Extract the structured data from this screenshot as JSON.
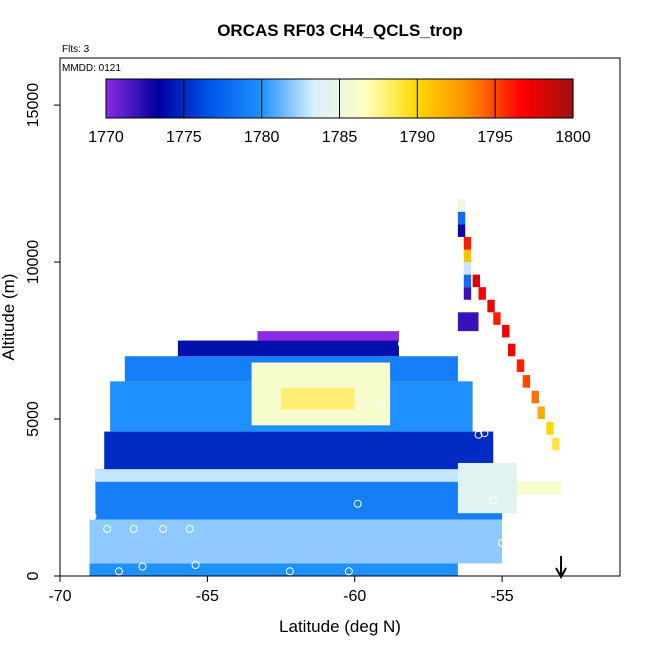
{
  "chart_data": {
    "type": "heatmap",
    "title": "ORCAS RF03 CH4_QCLS_trop",
    "flights_note": "Flts: 3",
    "date_note": "MMDD: 0121",
    "xlabel": "Latitude (deg N)",
    "ylabel": "Altitude (m)",
    "xlim": [
      -70,
      -51
    ],
    "ylim": [
      0,
      16500
    ],
    "xticks": [
      -70,
      -65,
      -60,
      -55
    ],
    "xtick_labels": [
      "-70",
      "-65",
      "-60",
      "-55"
    ],
    "yticks": [
      0,
      5000,
      10000,
      15000
    ],
    "ytick_labels": [
      "0",
      "5000",
      "10000",
      "15000"
    ],
    "colorbar": {
      "min": 1770,
      "max": 1800,
      "ticks": [
        1770,
        1775,
        1780,
        1785,
        1790,
        1795,
        1800
      ],
      "tick_labels": [
        "1770",
        "1775",
        "1780",
        "1785",
        "1790",
        "1795",
        "1800"
      ],
      "stops": [
        "#8B2BE2",
        "#0000A0",
        "#0055E8",
        "#1E90FF",
        "#D8F0FF",
        "#FFFFC0",
        "#FFD700",
        "#FF8C00",
        "#FF0000",
        "#A01010"
      ]
    },
    "cell_size": {
      "lat": 0.25,
      "alt": 200
    },
    "regions": [
      {
        "lat": [
          -69.0,
          -56.5
        ],
        "alt": [
          0,
          400
        ],
        "value": 1780
      },
      {
        "lat": [
          -69.0,
          -55.0
        ],
        "alt": [
          400,
          1800
        ],
        "value": 1782
      },
      {
        "lat": [
          -68.8,
          -55.0
        ],
        "alt": [
          1800,
          3400
        ],
        "value": 1779
      },
      {
        "lat": [
          -68.5,
          -55.3
        ],
        "alt": [
          3400,
          4600
        ],
        "value": 1775
      },
      {
        "lat": [
          -68.3,
          -56.0
        ],
        "alt": [
          4600,
          6200
        ],
        "value": 1780
      },
      {
        "lat": [
          -67.8,
          -56.5
        ],
        "alt": [
          6200,
          7000
        ],
        "value": 1779
      },
      {
        "lat": [
          -66.0,
          -58.5
        ],
        "alt": [
          7000,
          7500
        ],
        "value": 1774
      },
      {
        "lat": [
          -63.3,
          -58.5
        ],
        "alt": [
          7500,
          7800
        ],
        "value": 1770
      },
      {
        "lat": [
          -63.5,
          -58.8
        ],
        "alt": [
          4800,
          6800
        ],
        "value": 1786
      },
      {
        "lat": [
          -62.5,
          -60.0
        ],
        "alt": [
          5300,
          6000
        ],
        "value": 1788
      },
      {
        "lat": [
          -68.8,
          -55.5
        ],
        "alt": [
          3000,
          3400
        ],
        "value": 1783
      },
      {
        "lat": [
          -56.5,
          -54.5
        ],
        "alt": [
          2000,
          3600
        ],
        "value": 1784
      },
      {
        "lat": [
          -54.5,
          -53.0
        ],
        "alt": [
          2600,
          3000
        ],
        "value": 1786
      },
      {
        "lat": [
          -56.5,
          -55.8
        ],
        "alt": [
          7800,
          8400
        ],
        "value": 1772
      }
    ],
    "profile": [
      {
        "lat": -56.5,
        "alt": 11600,
        "value": 1785
      },
      {
        "lat": -56.5,
        "alt": 11200,
        "value": 1778
      },
      {
        "lat": -56.5,
        "alt": 10800,
        "value": 1773
      },
      {
        "lat": -56.3,
        "alt": 10400,
        "value": 1796
      },
      {
        "lat": -56.3,
        "alt": 10000,
        "value": 1791
      },
      {
        "lat": -56.3,
        "alt": 9600,
        "value": 1783
      },
      {
        "lat": -56.3,
        "alt": 9200,
        "value": 1778
      },
      {
        "lat": -56.3,
        "alt": 8800,
        "value": 1772
      },
      {
        "lat": -56.0,
        "alt": 9200,
        "value": 1798
      },
      {
        "lat": -55.8,
        "alt": 8800,
        "value": 1797
      },
      {
        "lat": -55.5,
        "alt": 8400,
        "value": 1797
      },
      {
        "lat": -55.3,
        "alt": 8000,
        "value": 1796
      },
      {
        "lat": -55.0,
        "alt": 7600,
        "value": 1797
      },
      {
        "lat": -54.8,
        "alt": 7000,
        "value": 1797
      },
      {
        "lat": -54.5,
        "alt": 6500,
        "value": 1796
      },
      {
        "lat": -54.3,
        "alt": 6000,
        "value": 1795
      },
      {
        "lat": -54.0,
        "alt": 5500,
        "value": 1794
      },
      {
        "lat": -53.8,
        "alt": 5000,
        "value": 1792
      },
      {
        "lat": -53.5,
        "alt": 4500,
        "value": 1790
      },
      {
        "lat": -53.3,
        "alt": 4000,
        "value": 1789
      }
    ],
    "sample_points": [
      {
        "lat": -68.0,
        "alt": 150
      },
      {
        "lat": -67.2,
        "alt": 300
      },
      {
        "lat": -65.4,
        "alt": 350
      },
      {
        "lat": -62.2,
        "alt": 150
      },
      {
        "lat": -60.2,
        "alt": 150
      },
      {
        "lat": -55.1,
        "alt": 150
      },
      {
        "lat": -68.9,
        "alt": 1900
      },
      {
        "lat": -68.4,
        "alt": 1500
      },
      {
        "lat": -67.5,
        "alt": 1500
      },
      {
        "lat": -66.5,
        "alt": 1500
      },
      {
        "lat": -65.6,
        "alt": 1500
      },
      {
        "lat": -59.9,
        "alt": 2300
      },
      {
        "lat": -55.3,
        "alt": 2400
      },
      {
        "lat": -55.0,
        "alt": 1050
      },
      {
        "lat": -68.7,
        "alt": 4400
      },
      {
        "lat": -55.8,
        "alt": 4500
      },
      {
        "lat": -55.6,
        "alt": 4550
      },
      {
        "lat": -59.1,
        "alt": 5500
      },
      {
        "lat": -68.0,
        "alt": 6800
      },
      {
        "lat": -58.4,
        "alt": 7400
      },
      {
        "lat": -58.3,
        "alt": 7300
      },
      {
        "lat": -56.3,
        "alt": 7400
      }
    ],
    "marker_arrow": {
      "lat": -53.0
    }
  }
}
